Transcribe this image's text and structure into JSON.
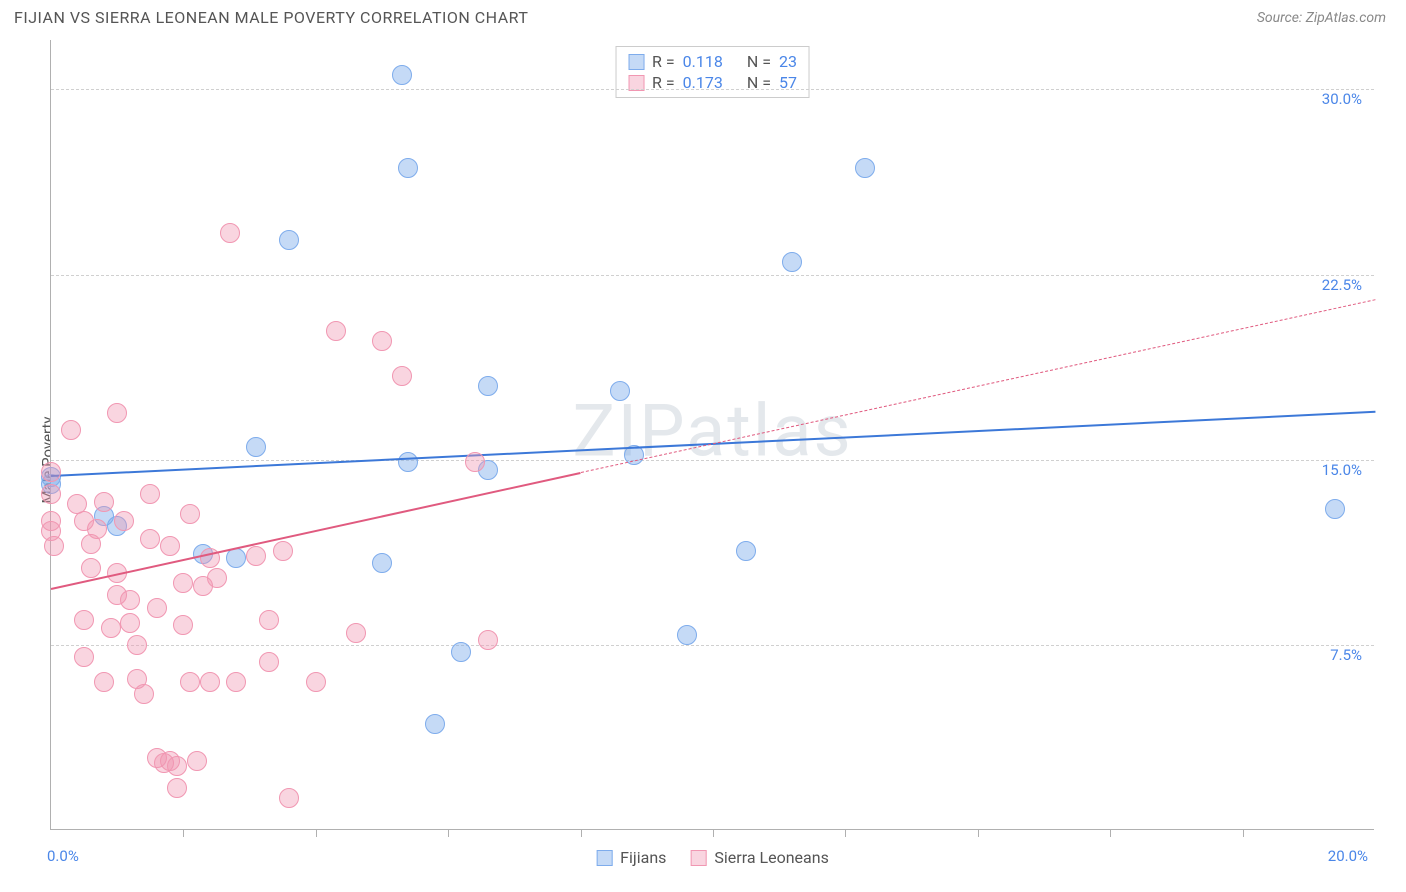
{
  "title": "FIJIAN VS SIERRA LEONEAN MALE POVERTY CORRELATION CHART",
  "source": "Source: ZipAtlas.com",
  "watermark": "ZIPatlas",
  "ylabel": "Male Poverty",
  "chart": {
    "type": "scatter",
    "xlim": [
      0,
      20
    ],
    "ylim": [
      0,
      32
    ],
    "x_tick_labels": {
      "0": "0.0%",
      "20": "20.0%"
    },
    "x_minor_ticks": [
      2,
      4,
      6,
      8,
      10,
      12,
      14,
      16,
      18
    ],
    "y_gridlines": [
      7.5,
      15.0,
      22.5,
      30.0
    ],
    "y_tick_labels": [
      "7.5%",
      "15.0%",
      "22.5%",
      "30.0%"
    ],
    "background_color": "#ffffff",
    "grid_color": "#d0d0d0",
    "axis_color": "#b0b0b0",
    "label_fontsize": 15,
    "series": [
      {
        "name": "Fijians",
        "fill_color": "rgba(126,172,234,0.45)",
        "stroke_color": "#7eacec",
        "point_radius": 10,
        "trend_color": "#3c78d8",
        "trend_width": 2.5,
        "trend": {
          "x1": 0,
          "y1": 14.4,
          "x2": 20,
          "y2": 17.0
        },
        "R": "0.118",
        "N": "23",
        "points": [
          [
            0.0,
            14.3
          ],
          [
            0.0,
            14.0
          ],
          [
            0.8,
            12.7
          ],
          [
            1.0,
            12.3
          ],
          [
            2.3,
            11.2
          ],
          [
            2.8,
            11.0
          ],
          [
            3.1,
            15.5
          ],
          [
            3.6,
            23.9
          ],
          [
            5.0,
            10.8
          ],
          [
            5.3,
            30.6
          ],
          [
            5.4,
            26.8
          ],
          [
            5.4,
            14.9
          ],
          [
            6.2,
            7.2
          ],
          [
            5.8,
            4.3
          ],
          [
            6.6,
            18.0
          ],
          [
            6.6,
            14.6
          ],
          [
            8.6,
            17.8
          ],
          [
            8.8,
            15.2
          ],
          [
            9.6,
            7.9
          ],
          [
            10.5,
            11.3
          ],
          [
            11.2,
            23.0
          ],
          [
            12.3,
            26.8
          ],
          [
            19.4,
            13.0
          ]
        ]
      },
      {
        "name": "Sierra Leoneans",
        "fill_color": "rgba(241,151,178,0.40)",
        "stroke_color": "#f197b2",
        "point_radius": 10,
        "trend_color": "#e05a7f",
        "trend_width": 2.5,
        "trend": {
          "x1": 0,
          "y1": 9.8,
          "x2": 8,
          "y2": 14.5
        },
        "trend_dash": {
          "x1": 8,
          "y1": 14.5,
          "x2": 20,
          "y2": 21.5
        },
        "R": "0.173",
        "N": "57",
        "points": [
          [
            0.0,
            14.5
          ],
          [
            0.0,
            13.6
          ],
          [
            0.0,
            12.5
          ],
          [
            0.0,
            12.1
          ],
          [
            0.05,
            11.5
          ],
          [
            0.3,
            16.2
          ],
          [
            0.4,
            13.2
          ],
          [
            0.5,
            12.5
          ],
          [
            0.6,
            10.6
          ],
          [
            0.6,
            11.6
          ],
          [
            0.5,
            8.5
          ],
          [
            0.5,
            7.0
          ],
          [
            0.7,
            12.2
          ],
          [
            0.8,
            13.3
          ],
          [
            0.8,
            6.0
          ],
          [
            0.9,
            8.2
          ],
          [
            1.0,
            10.4
          ],
          [
            1.0,
            9.5
          ],
          [
            1.0,
            16.9
          ],
          [
            1.1,
            12.5
          ],
          [
            1.2,
            9.3
          ],
          [
            1.2,
            8.4
          ],
          [
            1.3,
            7.5
          ],
          [
            1.3,
            6.1
          ],
          [
            1.4,
            5.5
          ],
          [
            1.5,
            13.6
          ],
          [
            1.5,
            11.8
          ],
          [
            1.6,
            9.0
          ],
          [
            1.6,
            2.9
          ],
          [
            1.7,
            2.7
          ],
          [
            1.8,
            11.5
          ],
          [
            1.8,
            2.8
          ],
          [
            1.9,
            2.6
          ],
          [
            1.9,
            1.7
          ],
          [
            2.0,
            10.0
          ],
          [
            2.0,
            8.3
          ],
          [
            2.1,
            12.8
          ],
          [
            2.1,
            6.0
          ],
          [
            2.2,
            2.8
          ],
          [
            2.3,
            9.9
          ],
          [
            2.4,
            11.0
          ],
          [
            2.4,
            6.0
          ],
          [
            2.5,
            10.2
          ],
          [
            2.7,
            24.2
          ],
          [
            2.8,
            6.0
          ],
          [
            3.1,
            11.1
          ],
          [
            3.3,
            8.5
          ],
          [
            3.3,
            6.8
          ],
          [
            3.5,
            11.3
          ],
          [
            3.6,
            1.3
          ],
          [
            4.0,
            6.0
          ],
          [
            4.3,
            20.2
          ],
          [
            4.6,
            8.0
          ],
          [
            5.0,
            19.8
          ],
          [
            5.3,
            18.4
          ],
          [
            6.4,
            14.9
          ],
          [
            6.6,
            7.7
          ]
        ]
      }
    ]
  },
  "legend_top": [
    {
      "swatch_fill": "rgba(126,172,234,0.45)",
      "swatch_stroke": "#7eacec",
      "r_label": "R =",
      "r_val": "0.118",
      "n_label": "N =",
      "n_val": "23"
    },
    {
      "swatch_fill": "rgba(241,151,178,0.40)",
      "swatch_stroke": "#f197b2",
      "r_label": "R =",
      "r_val": "0.173",
      "n_label": "N =",
      "n_val": "57"
    }
  ],
  "legend_bottom": [
    {
      "swatch_fill": "rgba(126,172,234,0.45)",
      "swatch_stroke": "#7eacec",
      "label": "Fijians"
    },
    {
      "swatch_fill": "rgba(241,151,178,0.40)",
      "swatch_stroke": "#f197b2",
      "label": "Sierra Leoneans"
    }
  ]
}
